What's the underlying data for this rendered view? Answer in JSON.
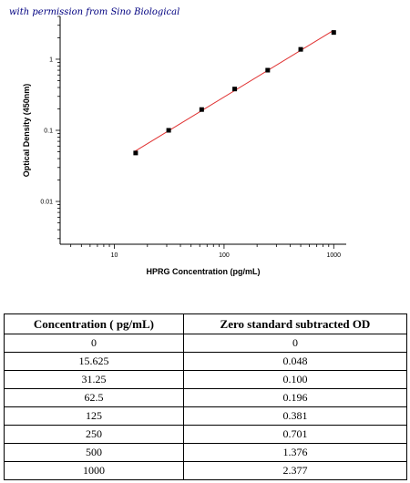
{
  "credit": "with permission from Sino Biological",
  "chart_data": {
    "type": "scatter",
    "xlabel": "HPRG Concentration (pg/mL)",
    "ylabel": "Optical Density (450nm)",
    "x_scale": "log",
    "y_scale": "log",
    "xlim": [
      3.2,
      1300
    ],
    "ylim": [
      0.0025,
      4
    ],
    "x_ticks": [
      10,
      100,
      1000
    ],
    "x_tick_labels": [
      "10",
      "100",
      "1000"
    ],
    "y_ticks": [
      0.01,
      0.1,
      1
    ],
    "y_tick_labels": [
      "0.01",
      "0.1",
      "1"
    ],
    "grid": false,
    "fit_line": {
      "color": "#e03030",
      "x_range": [
        15,
        1000
      ]
    },
    "point_color": "#000000",
    "x": [
      15.625,
      31.25,
      62.5,
      125,
      250,
      500,
      1000
    ],
    "y": [
      0.048,
      0.1,
      0.196,
      0.381,
      0.701,
      1.376,
      2.377
    ]
  },
  "table": {
    "headers": [
      "Concentration ( pg/mL)",
      "Zero standard subtracted OD"
    ],
    "rows": [
      [
        "0",
        "0"
      ],
      [
        "15.625",
        "0.048"
      ],
      [
        "31.25",
        "0.100"
      ],
      [
        "62.5",
        "0.196"
      ],
      [
        "125",
        "0.381"
      ],
      [
        "250",
        "0.701"
      ],
      [
        "500",
        "1.376"
      ],
      [
        "1000",
        "2.377"
      ]
    ]
  }
}
